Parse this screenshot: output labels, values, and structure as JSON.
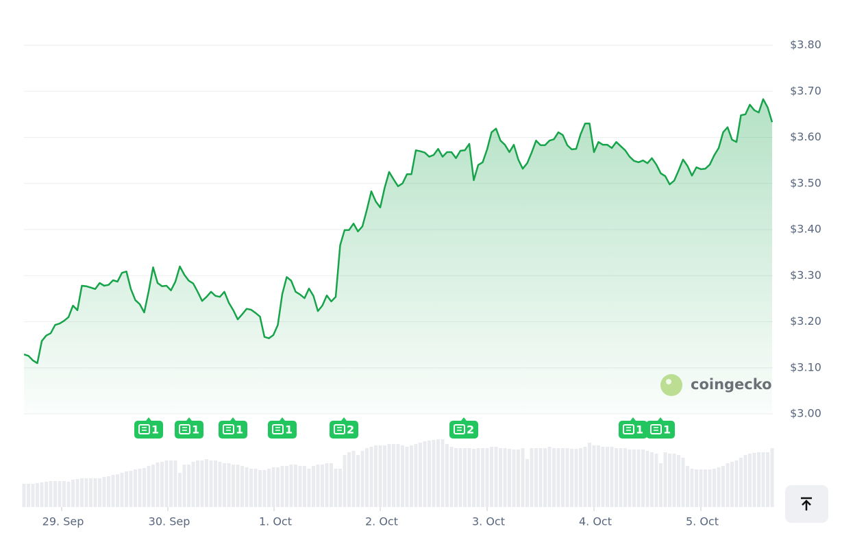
{
  "chart_data": {
    "type": "line",
    "series": [
      {
        "name": "Price",
        "color": "#16a34a",
        "values": [
          3.129,
          3.126,
          3.116,
          3.11,
          3.158,
          3.17,
          3.175,
          3.193,
          3.196,
          3.202,
          3.21,
          3.235,
          3.225,
          3.278,
          3.277,
          3.274,
          3.271,
          3.284,
          3.278,
          3.28,
          3.29,
          3.287,
          3.306,
          3.309,
          3.271,
          3.247,
          3.238,
          3.22,
          3.266,
          3.318,
          3.284,
          3.277,
          3.278,
          3.268,
          3.287,
          3.32,
          3.302,
          3.289,
          3.283,
          3.265,
          3.245,
          3.254,
          3.265,
          3.256,
          3.254,
          3.265,
          3.241,
          3.225,
          3.205,
          3.216,
          3.228,
          3.226,
          3.219,
          3.211,
          3.167,
          3.164,
          3.171,
          3.193,
          3.26,
          3.297,
          3.289,
          3.265,
          3.259,
          3.251,
          3.272,
          3.256,
          3.223,
          3.235,
          3.257,
          3.244,
          3.254,
          3.366,
          3.399,
          3.399,
          3.413,
          3.396,
          3.407,
          3.443,
          3.483,
          3.461,
          3.448,
          3.491,
          3.525,
          3.509,
          3.494,
          3.5,
          3.52,
          3.52,
          3.572,
          3.57,
          3.567,
          3.558,
          3.562,
          3.575,
          3.558,
          3.568,
          3.568,
          3.555,
          3.571,
          3.572,
          3.586,
          3.507,
          3.54,
          3.546,
          3.574,
          3.611,
          3.619,
          3.593,
          3.584,
          3.568,
          3.584,
          3.552,
          3.532,
          3.544,
          3.567,
          3.593,
          3.583,
          3.583,
          3.593,
          3.596,
          3.611,
          3.605,
          3.583,
          3.574,
          3.575,
          3.607,
          3.63,
          3.63,
          3.568,
          3.59,
          3.584,
          3.584,
          3.577,
          3.59,
          3.581,
          3.572,
          3.558,
          3.549,
          3.546,
          3.55,
          3.544,
          3.555,
          3.541,
          3.522,
          3.516,
          3.498,
          3.506,
          3.528,
          3.552,
          3.538,
          3.517,
          3.535,
          3.531,
          3.532,
          3.541,
          3.561,
          3.577,
          3.611,
          3.622,
          3.595,
          3.59,
          3.648,
          3.65,
          3.671,
          3.659,
          3.654,
          3.683,
          3.665,
          3.633
        ]
      }
    ],
    "volume": [
      34,
      34,
      34,
      35,
      36,
      37,
      38,
      38,
      38,
      38,
      37,
      40,
      41,
      42,
      42,
      42,
      42,
      42,
      44,
      45,
      47,
      48,
      50,
      52,
      53,
      55,
      56,
      57,
      60,
      62,
      65,
      66,
      68,
      68,
      68,
      50,
      62,
      62,
      66,
      68,
      68,
      70,
      68,
      68,
      66,
      64,
      64,
      62,
      62,
      60,
      58,
      56,
      56,
      54,
      54,
      56,
      58,
      58,
      60,
      60,
      62,
      62,
      60,
      60,
      56,
      60,
      62,
      62,
      64,
      64,
      56,
      56,
      76,
      80,
      82,
      76,
      82,
      86,
      88,
      90,
      90,
      90,
      92,
      92,
      92,
      90,
      88,
      90,
      92,
      94,
      96,
      97,
      98,
      99,
      99,
      92,
      88,
      86,
      86,
      86,
      86,
      85,
      86,
      86,
      86,
      88,
      88,
      86,
      86,
      85,
      84,
      84,
      86,
      70,
      86,
      86,
      86,
      86,
      88,
      86,
      86,
      86,
      86,
      85,
      85,
      86,
      88,
      94,
      90,
      90,
      88,
      88,
      88,
      86,
      86,
      86,
      84,
      84,
      84,
      84,
      82,
      80,
      78,
      64,
      80,
      78,
      78,
      76,
      72,
      60,
      56,
      55,
      55,
      55,
      55,
      56,
      58,
      60,
      64,
      66,
      68,
      72,
      76,
      78,
      79,
      80,
      80,
      80,
      86
    ],
    "x_labels": [
      "29. Sep",
      "30. Sep",
      "1. Oct",
      "2. Oct",
      "3. Oct",
      "4. Oct",
      "5. Oct"
    ],
    "ylim": [
      3.0,
      3.8
    ],
    "yticks": [
      {
        "value": 3.0,
        "label": "$3.00"
      },
      {
        "value": 3.1,
        "label": "$3.10"
      },
      {
        "value": 3.2,
        "label": "$3.20"
      },
      {
        "value": 3.3,
        "label": "$3.30"
      },
      {
        "value": 3.4,
        "label": "$3.40"
      },
      {
        "value": 3.5,
        "label": "$3.50"
      },
      {
        "value": 3.6,
        "label": "$3.60"
      },
      {
        "value": 3.7,
        "label": "$3.70"
      },
      {
        "value": 3.8,
        "label": "$3.80"
      }
    ],
    "grid": true,
    "news_badges": [
      "1",
      "1",
      "1",
      "1",
      "2",
      "2",
      "1",
      "1"
    ],
    "watermark": "coingecko"
  }
}
